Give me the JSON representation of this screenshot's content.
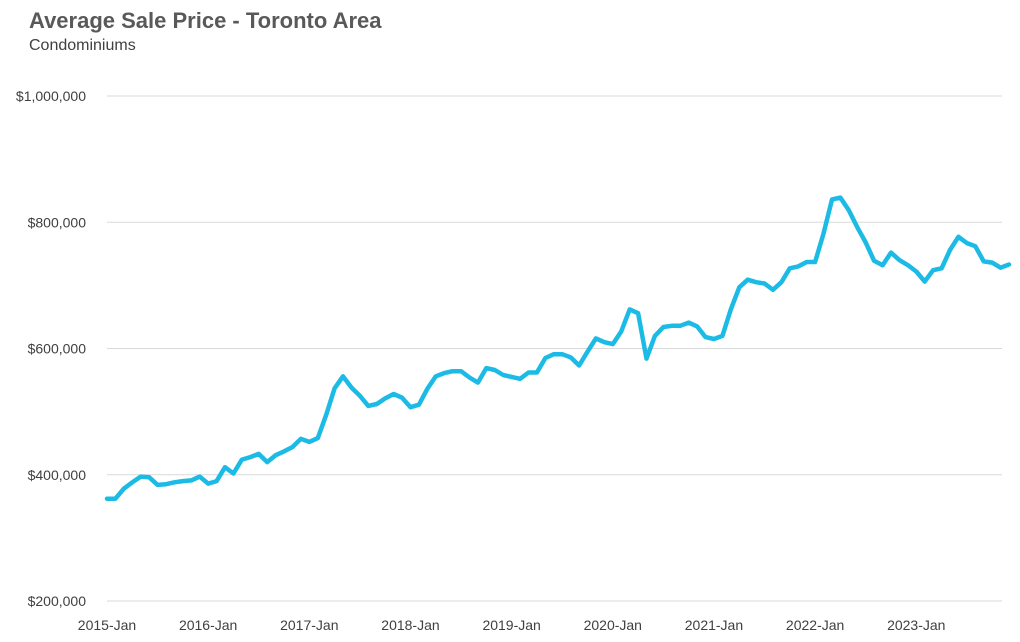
{
  "chart_data": {
    "type": "line",
    "title": "Average Sale Price - Toronto Area",
    "subtitle": "Condominiums",
    "xlabel": "",
    "ylabel": "",
    "ylim": [
      200000,
      1000000
    ],
    "yticks": [
      1000000,
      800000,
      600000,
      400000,
      200000
    ],
    "ytick_labels": [
      "$1,000,000",
      "$800,000",
      "$600,000",
      "$400,000",
      "$200,000"
    ],
    "xtick_labels": [
      "2015-Jan",
      "2016-Jan",
      "2017-Jan",
      "2018-Jan",
      "2019-Jan",
      "2020-Jan",
      "2021-Jan",
      "2022-Jan",
      "2023-Jan"
    ],
    "x_start": "2015-Jan",
    "x_frequency": "monthly",
    "grid": true,
    "line_color": "#1bbbe6",
    "series": [
      {
        "values": [
          362000,
          362000,
          378000,
          388000,
          397000,
          396000,
          384000,
          385000,
          388000,
          390000,
          391000,
          397000,
          386000,
          390000,
          412000,
          402000,
          424000,
          428000,
          433000,
          420000,
          431000,
          437000,
          444000,
          457000,
          452000,
          458000,
          495000,
          537000,
          556000,
          538000,
          525000,
          509000,
          512000,
          521000,
          528000,
          522000,
          507000,
          511000,
          536000,
          556000,
          561000,
          564000,
          564000,
          554000,
          546000,
          569000,
          566000,
          558000,
          555000,
          552000,
          562000,
          562000,
          585000,
          591000,
          591000,
          586000,
          573000,
          595000,
          616000,
          610000,
          607000,
          627000,
          662000,
          656000,
          584000,
          620000,
          634000,
          636000,
          636000,
          641000,
          635000,
          618000,
          615000,
          620000,
          662000,
          697000,
          709000,
          705000,
          703000,
          693000,
          705000,
          727000,
          730000,
          737000,
          737000,
          782000,
          836000,
          839000,
          819000,
          792000,
          768000,
          739000,
          732000,
          752000,
          740000,
          732000,
          722000,
          706000,
          724000,
          727000,
          756000,
          777000,
          767000,
          762000,
          738000,
          736000,
          728000,
          733000
        ]
      }
    ]
  }
}
